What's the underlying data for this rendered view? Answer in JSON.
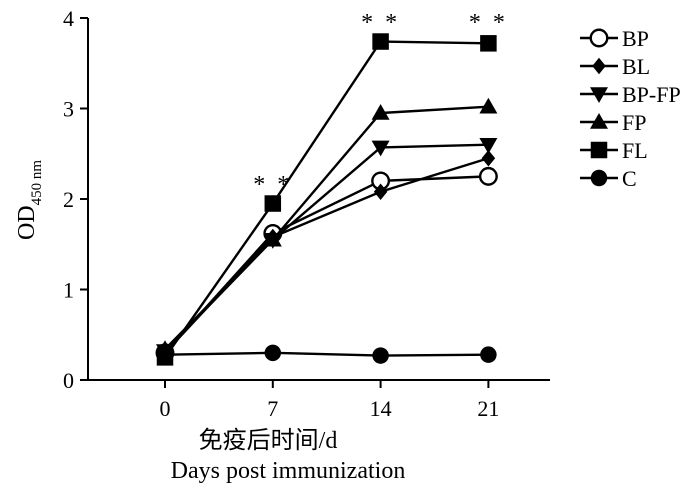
{
  "chart_data": {
    "type": "line",
    "title": "",
    "xlabel_cn": "免疫后时间/d",
    "xlabel": "Days post immunization",
    "ylabel_main": "OD",
    "ylabel_sub": "450 nm",
    "x": [
      0,
      7,
      14,
      21
    ],
    "xticks": [
      "0",
      "7",
      "14",
      "21"
    ],
    "xlim": [
      -5,
      25
    ],
    "ylim": [
      0,
      4
    ],
    "yticks": [
      "0",
      "1",
      "2",
      "3",
      "4"
    ],
    "grid": false,
    "legend_position": "right",
    "series": [
      {
        "name": "BP",
        "marker": "circle-open",
        "values": [
          0.3,
          1.62,
          2.2,
          2.25
        ]
      },
      {
        "name": "BL",
        "marker": "diamond",
        "values": [
          0.3,
          1.58,
          2.08,
          2.45
        ]
      },
      {
        "name": "BP-FP",
        "marker": "triangle-down",
        "values": [
          0.32,
          1.55,
          2.57,
          2.6
        ]
      },
      {
        "name": "FP",
        "marker": "triangle-up",
        "values": [
          0.34,
          1.55,
          2.95,
          3.02
        ]
      },
      {
        "name": "FL",
        "marker": "square",
        "values": [
          0.25,
          1.95,
          3.74,
          3.72
        ]
      },
      {
        "name": "C",
        "marker": "circle",
        "values": [
          0.28,
          0.3,
          0.27,
          0.28
        ]
      }
    ],
    "annotations": [
      {
        "text": "**",
        "x": 7,
        "y": 2.08
      },
      {
        "text": "**",
        "x": 14,
        "y": 3.87
      },
      {
        "text": "**",
        "x": 21,
        "y": 3.87
      }
    ]
  }
}
